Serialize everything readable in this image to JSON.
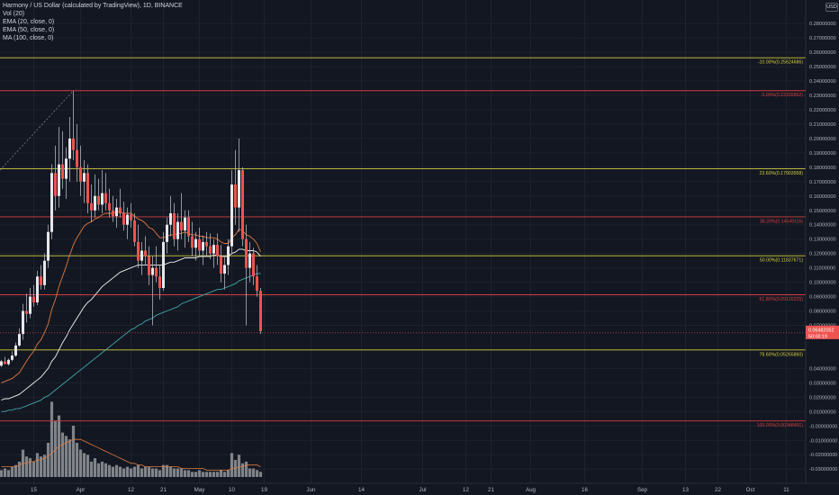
{
  "legend": {
    "title": "Harmony / US Dollar (calculated by TradingView), 1D, BINANCE",
    "vol": "Vol (20)",
    "ema20": "EMA (20, close, 0)",
    "ema50": "EMA (50, close, 0)",
    "ma100": "MA (100, close, 0)"
  },
  "currency_badge": "USD",
  "colors": {
    "background": "#131722",
    "up": "#26a69a",
    "down": "#ef5350",
    "wick": "#b2b5be",
    "candle_body": "#e6e7ea",
    "fib_yellow": "#d4cf3f",
    "fib_red": "#d23f3f",
    "ema20": "#e07a3c",
    "ema50": "#f0f0f0",
    "ma100": "#3fa6a6",
    "volume": "#8d9095",
    "price_badge": "#ef5350"
  },
  "chart_data": {
    "type": "candlestick",
    "y_axis": {
      "range": [
        -0.033,
        0.292
      ],
      "ticks": [
        {
          "value": 0.28,
          "label": "0.28000000"
        },
        {
          "value": 0.27,
          "label": "0.27000000"
        },
        {
          "value": 0.26,
          "label": "0.26000000"
        },
        {
          "value": 0.25,
          "label": "0.25000000"
        },
        {
          "value": 0.24,
          "label": "0.24000000"
        },
        {
          "value": 0.23,
          "label": "0.23000000"
        },
        {
          "value": 0.22,
          "label": "0.22000000"
        },
        {
          "value": 0.21,
          "label": "0.21000000"
        },
        {
          "value": 0.2,
          "label": "0.20000000"
        },
        {
          "value": 0.19,
          "label": "0.19000000"
        },
        {
          "value": 0.18,
          "label": "0.18000000"
        },
        {
          "value": 0.17,
          "label": "0.17000000"
        },
        {
          "value": 0.16,
          "label": "0.16000000"
        },
        {
          "value": 0.15,
          "label": "0.15000000"
        },
        {
          "value": 0.14,
          "label": "0.14000000"
        },
        {
          "value": 0.13,
          "label": "0.13000000"
        },
        {
          "value": 0.12,
          "label": "0.12000000"
        },
        {
          "value": 0.11,
          "label": "0.11000000"
        },
        {
          "value": 0.1,
          "label": "0.10000000"
        },
        {
          "value": 0.09,
          "label": "0.09000000"
        },
        {
          "value": 0.08,
          "label": "0.08000000"
        },
        {
          "value": 0.07,
          "label": "0.07000000"
        },
        {
          "value": 0.04,
          "label": "0.04000000"
        },
        {
          "value": 0.03,
          "label": "0.03000000"
        },
        {
          "value": 0.02,
          "label": "0.02000000"
        },
        {
          "value": 0.01,
          "label": "0.01000000"
        },
        {
          "value": 0.0,
          "label": "-0.00000000"
        },
        {
          "value": -0.01,
          "label": "-0.01000000"
        },
        {
          "value": -0.02,
          "label": "-0.02000000"
        },
        {
          "value": -0.03,
          "label": "-0.03000000"
        }
      ]
    },
    "x_axis": {
      "range": [
        0,
        224
      ],
      "ticks": [
        {
          "day": 9,
          "label": "15"
        },
        {
          "day": 22,
          "label": "Apr"
        },
        {
          "day": 36,
          "label": "12"
        },
        {
          "day": 45,
          "label": "21"
        },
        {
          "day": 55,
          "label": "May"
        },
        {
          "day": 64,
          "label": "10"
        },
        {
          "day": 73,
          "label": "19"
        },
        {
          "day": 86,
          "label": "Jun"
        },
        {
          "day": 100,
          "label": "14"
        },
        {
          "day": 117,
          "label": "Jul"
        },
        {
          "day": 129,
          "label": "12"
        },
        {
          "day": 136,
          "label": "21"
        },
        {
          "day": 147,
          "label": "Aug"
        },
        {
          "day": 162,
          "label": "16"
        },
        {
          "day": 178,
          "label": "Sep"
        },
        {
          "day": 190,
          "label": "13"
        },
        {
          "day": 199,
          "label": "22"
        },
        {
          "day": 208,
          "label": "Oct"
        },
        {
          "day": 218,
          "label": "11"
        }
      ]
    },
    "fib_levels": [
      {
        "value": 0.2562,
        "label": "-10.00%(0.25624686)",
        "color": "yellow"
      },
      {
        "value": 0.2333,
        "label": "0.00%(0.23326852)",
        "color": "red"
      },
      {
        "value": 0.179,
        "label": "23.60%(0.17903958)",
        "color": "yellow"
      },
      {
        "value": 0.1455,
        "label": "38.20%(0.14549116)",
        "color": "red"
      },
      {
        "value": 0.1184,
        "label": "50.00%(0.11837671)",
        "color": "yellow"
      },
      {
        "value": 0.0913,
        "label": "61.80%(0.09126225)",
        "color": "red"
      },
      {
        "value": 0.0529,
        "label": "78.60%(0.05265860)",
        "color": "yellow"
      },
      {
        "value": 0.0035,
        "label": "100.00%(0.00348491)",
        "color": "red"
      }
    ],
    "last_price": {
      "value": 0.0648,
      "price_label": "0.06482052",
      "countdown": "50:00:19"
    },
    "candles": [
      {
        "o": 0.042,
        "h": 0.046,
        "l": 0.041,
        "c": 0.045
      },
      {
        "o": 0.045,
        "h": 0.048,
        "l": 0.043,
        "c": 0.043
      },
      {
        "o": 0.043,
        "h": 0.047,
        "l": 0.042,
        "c": 0.046
      },
      {
        "o": 0.046,
        "h": 0.052,
        "l": 0.045,
        "c": 0.049
      },
      {
        "o": 0.049,
        "h": 0.058,
        "l": 0.048,
        "c": 0.056
      },
      {
        "o": 0.056,
        "h": 0.068,
        "l": 0.055,
        "c": 0.064
      },
      {
        "o": 0.064,
        "h": 0.085,
        "l": 0.06,
        "c": 0.08
      },
      {
        "o": 0.08,
        "h": 0.092,
        "l": 0.072,
        "c": 0.078
      },
      {
        "o": 0.078,
        "h": 0.096,
        "l": 0.075,
        "c": 0.09
      },
      {
        "o": 0.09,
        "h": 0.098,
        "l": 0.083,
        "c": 0.086
      },
      {
        "o": 0.086,
        "h": 0.108,
        "l": 0.084,
        "c": 0.104
      },
      {
        "o": 0.104,
        "h": 0.112,
        "l": 0.095,
        "c": 0.098
      },
      {
        "o": 0.098,
        "h": 0.12,
        "l": 0.095,
        "c": 0.115
      },
      {
        "o": 0.115,
        "h": 0.14,
        "l": 0.11,
        "c": 0.135
      },
      {
        "o": 0.135,
        "h": 0.182,
        "l": 0.13,
        "c": 0.176
      },
      {
        "o": 0.176,
        "h": 0.195,
        "l": 0.15,
        "c": 0.16
      },
      {
        "o": 0.16,
        "h": 0.208,
        "l": 0.152,
        "c": 0.182
      },
      {
        "o": 0.182,
        "h": 0.205,
        "l": 0.165,
        "c": 0.172
      },
      {
        "o": 0.172,
        "h": 0.194,
        "l": 0.158,
        "c": 0.186
      },
      {
        "o": 0.186,
        "h": 0.215,
        "l": 0.17,
        "c": 0.2
      },
      {
        "o": 0.2,
        "h": 0.233,
        "l": 0.185,
        "c": 0.192
      },
      {
        "o": 0.192,
        "h": 0.21,
        "l": 0.17,
        "c": 0.18
      },
      {
        "o": 0.18,
        "h": 0.195,
        "l": 0.16,
        "c": 0.17
      },
      {
        "o": 0.17,
        "h": 0.185,
        "l": 0.155,
        "c": 0.176
      },
      {
        "o": 0.176,
        "h": 0.182,
        "l": 0.148,
        "c": 0.155
      },
      {
        "o": 0.155,
        "h": 0.168,
        "l": 0.142,
        "c": 0.15
      },
      {
        "o": 0.15,
        "h": 0.175,
        "l": 0.145,
        "c": 0.16
      },
      {
        "o": 0.16,
        "h": 0.172,
        "l": 0.15,
        "c": 0.154
      },
      {
        "o": 0.154,
        "h": 0.178,
        "l": 0.148,
        "c": 0.162
      },
      {
        "o": 0.162,
        "h": 0.176,
        "l": 0.15,
        "c": 0.155
      },
      {
        "o": 0.155,
        "h": 0.165,
        "l": 0.145,
        "c": 0.15
      },
      {
        "o": 0.15,
        "h": 0.16,
        "l": 0.142,
        "c": 0.146
      },
      {
        "o": 0.146,
        "h": 0.158,
        "l": 0.138,
        "c": 0.152
      },
      {
        "o": 0.152,
        "h": 0.165,
        "l": 0.145,
        "c": 0.148
      },
      {
        "o": 0.148,
        "h": 0.156,
        "l": 0.136,
        "c": 0.14
      },
      {
        "o": 0.14,
        "h": 0.152,
        "l": 0.13,
        "c": 0.147
      },
      {
        "o": 0.147,
        "h": 0.155,
        "l": 0.138,
        "c": 0.143
      },
      {
        "o": 0.143,
        "h": 0.148,
        "l": 0.125,
        "c": 0.128
      },
      {
        "o": 0.128,
        "h": 0.14,
        "l": 0.11,
        "c": 0.115
      },
      {
        "o": 0.115,
        "h": 0.128,
        "l": 0.105,
        "c": 0.122
      },
      {
        "o": 0.122,
        "h": 0.132,
        "l": 0.112,
        "c": 0.118
      },
      {
        "o": 0.118,
        "h": 0.125,
        "l": 0.098,
        "c": 0.105
      },
      {
        "o": 0.105,
        "h": 0.118,
        "l": 0.07,
        "c": 0.11
      },
      {
        "o": 0.11,
        "h": 0.125,
        "l": 0.1,
        "c": 0.104
      },
      {
        "o": 0.104,
        "h": 0.112,
        "l": 0.088,
        "c": 0.096
      },
      {
        "o": 0.096,
        "h": 0.135,
        "l": 0.094,
        "c": 0.128
      },
      {
        "o": 0.128,
        "h": 0.145,
        "l": 0.12,
        "c": 0.14
      },
      {
        "o": 0.14,
        "h": 0.16,
        "l": 0.132,
        "c": 0.148
      },
      {
        "o": 0.148,
        "h": 0.155,
        "l": 0.125,
        "c": 0.13
      },
      {
        "o": 0.13,
        "h": 0.148,
        "l": 0.122,
        "c": 0.142
      },
      {
        "o": 0.142,
        "h": 0.162,
        "l": 0.13,
        "c": 0.136
      },
      {
        "o": 0.136,
        "h": 0.15,
        "l": 0.124,
        "c": 0.145
      },
      {
        "o": 0.145,
        "h": 0.15,
        "l": 0.128,
        "c": 0.132
      },
      {
        "o": 0.132,
        "h": 0.142,
        "l": 0.118,
        "c": 0.124
      },
      {
        "o": 0.124,
        "h": 0.135,
        "l": 0.115,
        "c": 0.13
      },
      {
        "o": 0.13,
        "h": 0.138,
        "l": 0.118,
        "c": 0.122
      },
      {
        "o": 0.122,
        "h": 0.132,
        "l": 0.112,
        "c": 0.128
      },
      {
        "o": 0.128,
        "h": 0.135,
        "l": 0.118,
        "c": 0.125
      },
      {
        "o": 0.125,
        "h": 0.134,
        "l": 0.116,
        "c": 0.12
      },
      {
        "o": 0.12,
        "h": 0.13,
        "l": 0.11,
        "c": 0.126
      },
      {
        "o": 0.126,
        "h": 0.134,
        "l": 0.112,
        "c": 0.118
      },
      {
        "o": 0.118,
        "h": 0.126,
        "l": 0.1,
        "c": 0.106
      },
      {
        "o": 0.106,
        "h": 0.118,
        "l": 0.095,
        "c": 0.112
      },
      {
        "o": 0.112,
        "h": 0.13,
        "l": 0.105,
        "c": 0.125
      },
      {
        "o": 0.125,
        "h": 0.178,
        "l": 0.12,
        "c": 0.168
      },
      {
        "o": 0.168,
        "h": 0.192,
        "l": 0.14,
        "c": 0.152
      },
      {
        "o": 0.152,
        "h": 0.2,
        "l": 0.135,
        "c": 0.178
      },
      {
        "o": 0.178,
        "h": 0.18,
        "l": 0.125,
        "c": 0.13
      },
      {
        "o": 0.13,
        "h": 0.14,
        "l": 0.07,
        "c": 0.11
      },
      {
        "o": 0.11,
        "h": 0.128,
        "l": 0.1,
        "c": 0.12
      },
      {
        "o": 0.12,
        "h": 0.124,
        "l": 0.098,
        "c": 0.104
      },
      {
        "o": 0.104,
        "h": 0.112,
        "l": 0.09,
        "c": 0.094
      },
      {
        "o": 0.094,
        "h": 0.096,
        "l": 0.064,
        "c": 0.066
      }
    ],
    "volume": [
      4,
      5,
      4,
      6,
      7,
      9,
      16,
      12,
      11,
      9,
      14,
      12,
      13,
      20,
      44,
      33,
      36,
      26,
      24,
      22,
      30,
      20,
      16,
      14,
      13,
      9,
      11,
      8,
      9,
      8,
      7,
      6,
      7,
      6,
      5,
      6,
      5,
      6,
      7,
      5,
      6,
      6,
      5,
      5,
      4,
      7,
      7,
      6,
      5,
      5,
      5,
      4,
      4,
      3,
      3,
      4,
      3,
      3,
      3,
      3,
      3,
      4,
      3,
      4,
      14,
      10,
      13,
      8,
      9,
      5,
      5,
      4,
      3
    ],
    "ema20": [
      0.03,
      0.031,
      0.032,
      0.033,
      0.035,
      0.037,
      0.041,
      0.045,
      0.049,
      0.052,
      0.057,
      0.06,
      0.065,
      0.071,
      0.081,
      0.088,
      0.097,
      0.104,
      0.111,
      0.119,
      0.126,
      0.131,
      0.135,
      0.139,
      0.141,
      0.142,
      0.144,
      0.145,
      0.147,
      0.148,
      0.148,
      0.148,
      0.149,
      0.149,
      0.148,
      0.148,
      0.148,
      0.146,
      0.144,
      0.143,
      0.141,
      0.138,
      0.137,
      0.134,
      0.131,
      0.131,
      0.132,
      0.133,
      0.133,
      0.134,
      0.134,
      0.135,
      0.134,
      0.133,
      0.133,
      0.132,
      0.132,
      0.131,
      0.131,
      0.131,
      0.13,
      0.128,
      0.127,
      0.127,
      0.131,
      0.133,
      0.137,
      0.136,
      0.133,
      0.132,
      0.13,
      0.127,
      0.121
    ],
    "ema50": [
      0.018,
      0.019,
      0.019,
      0.02,
      0.021,
      0.022,
      0.024,
      0.026,
      0.028,
      0.03,
      0.032,
      0.034,
      0.037,
      0.04,
      0.045,
      0.048,
      0.053,
      0.058,
      0.062,
      0.067,
      0.071,
      0.075,
      0.079,
      0.083,
      0.086,
      0.088,
      0.091,
      0.094,
      0.097,
      0.099,
      0.101,
      0.103,
      0.105,
      0.107,
      0.108,
      0.109,
      0.11,
      0.111,
      0.112,
      0.112,
      0.112,
      0.112,
      0.112,
      0.112,
      0.112,
      0.112,
      0.113,
      0.114,
      0.114,
      0.115,
      0.116,
      0.117,
      0.117,
      0.117,
      0.117,
      0.118,
      0.118,
      0.118,
      0.118,
      0.119,
      0.119,
      0.118,
      0.118,
      0.118,
      0.12,
      0.121,
      0.123,
      0.123,
      0.122,
      0.122,
      0.122,
      0.121,
      0.118
    ],
    "ma100": [
      0.01,
      0.01,
      0.011,
      0.011,
      0.012,
      0.012,
      0.013,
      0.014,
      0.015,
      0.016,
      0.017,
      0.018,
      0.02,
      0.021,
      0.023,
      0.025,
      0.027,
      0.029,
      0.031,
      0.033,
      0.035,
      0.037,
      0.039,
      0.041,
      0.043,
      0.045,
      0.047,
      0.049,
      0.051,
      0.053,
      0.055,
      0.057,
      0.059,
      0.061,
      0.063,
      0.065,
      0.067,
      0.068,
      0.07,
      0.071,
      0.073,
      0.074,
      0.075,
      0.077,
      0.078,
      0.079,
      0.08,
      0.081,
      0.082,
      0.083,
      0.085,
      0.086,
      0.087,
      0.088,
      0.089,
      0.09,
      0.091,
      0.092,
      0.093,
      0.094,
      0.095,
      0.095,
      0.096,
      0.097,
      0.098,
      0.099,
      0.101,
      0.102,
      0.103,
      0.104,
      0.105,
      0.106,
      0.106
    ],
    "volume_ma": [
      6,
      6,
      6,
      6,
      6,
      7,
      8,
      8,
      9,
      9,
      10,
      10,
      11,
      12,
      14,
      16,
      18,
      19,
      20,
      21,
      22,
      22,
      22,
      21,
      20,
      19,
      18,
      17,
      16,
      15,
      14,
      13,
      12,
      11,
      10,
      9,
      8,
      8,
      7,
      7,
      6,
      6,
      6,
      6,
      6,
      6,
      6,
      6,
      6,
      6,
      5,
      5,
      5,
      5,
      5,
      5,
      5,
      4,
      4,
      4,
      4,
      4,
      4,
      4,
      5,
      5,
      6,
      6,
      7,
      7,
      7,
      7,
      6
    ]
  }
}
